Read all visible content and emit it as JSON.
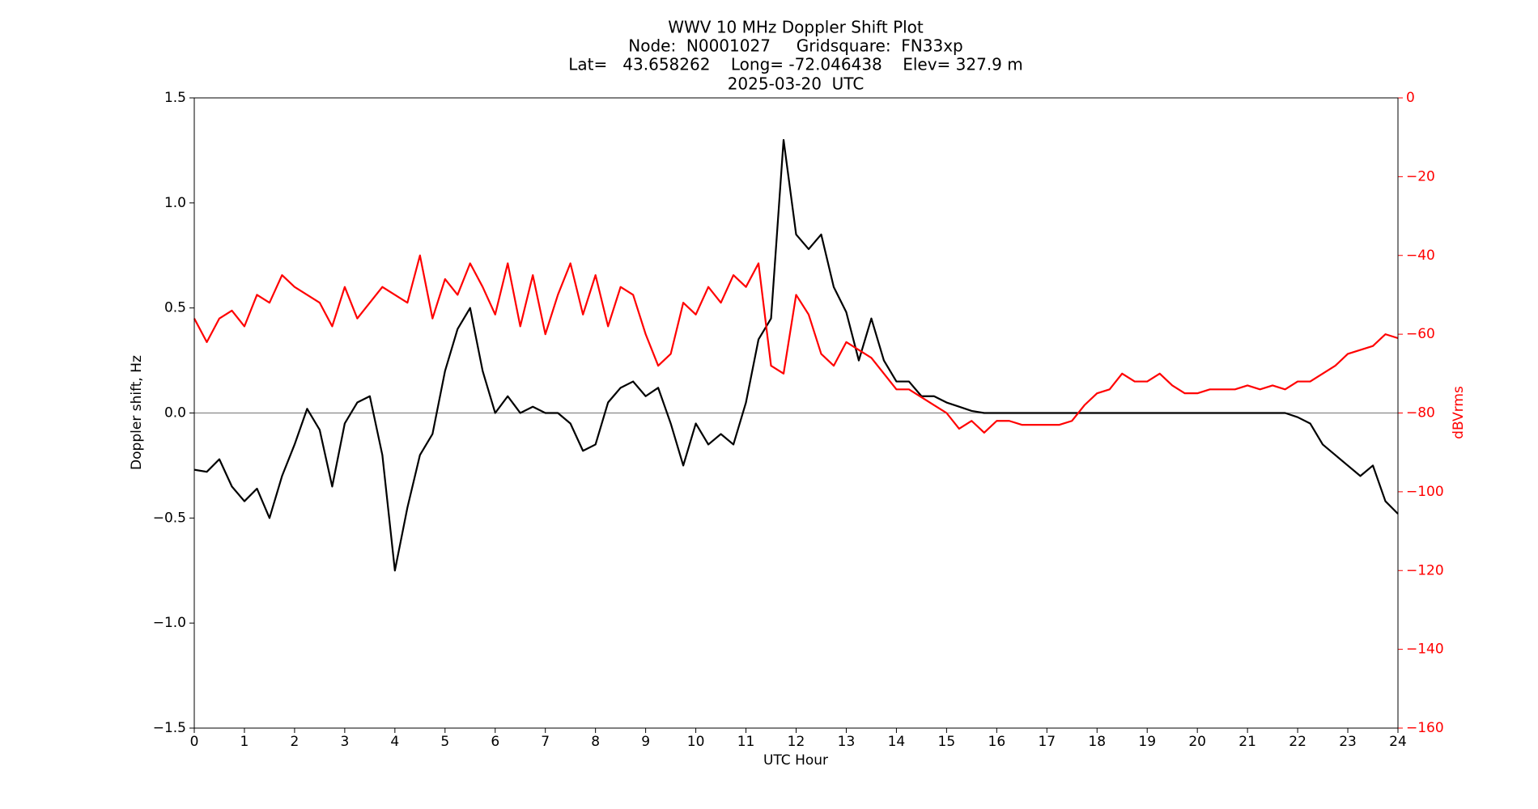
{
  "chart_data": {
    "type": "line",
    "title": [
      "WWV 10 MHz Doppler Shift Plot",
      "Node:  N0001027     Gridsquare:  FN33xp",
      "Lat=   43.658262    Long= -72.046438    Elev= 327.9 m",
      "2025-03-20  UTC"
    ],
    "x_label": "UTC Hour",
    "y_label": "Doppler shift, Hz",
    "y2_label": "dBVrms",
    "x": [
      0,
      0.25,
      0.5,
      0.75,
      1,
      1.25,
      1.5,
      1.75,
      2,
      2.25,
      2.5,
      2.75,
      3,
      3.25,
      3.5,
      3.75,
      4,
      4.25,
      4.5,
      4.75,
      5,
      5.25,
      5.5,
      5.75,
      6,
      6.25,
      6.5,
      6.75,
      7,
      7.25,
      7.5,
      7.75,
      8,
      8.25,
      8.5,
      8.75,
      9,
      9.25,
      9.5,
      9.75,
      10,
      10.25,
      10.5,
      10.75,
      11,
      11.25,
      11.5,
      11.75,
      12,
      12.25,
      12.5,
      12.75,
      13,
      13.25,
      13.5,
      13.75,
      14,
      14.25,
      14.5,
      14.75,
      15,
      15.25,
      15.5,
      15.75,
      16,
      16.25,
      16.5,
      16.75,
      17,
      17.25,
      17.5,
      17.75,
      18,
      18.25,
      18.5,
      18.75,
      19,
      19.25,
      19.5,
      19.75,
      20,
      20.25,
      20.5,
      20.75,
      21,
      21.25,
      21.5,
      21.75,
      22,
      22.25,
      22.5,
      22.75,
      23,
      23.25,
      23.5,
      23.75,
      24
    ],
    "series": [
      {
        "name": "Doppler shift",
        "color": "#000000",
        "values": [
          -0.27,
          -0.28,
          -0.22,
          -0.35,
          -0.42,
          -0.36,
          -0.5,
          -0.3,
          -0.15,
          0.02,
          -0.08,
          -0.35,
          -0.05,
          0.05,
          0.08,
          -0.2,
          -0.75,
          -0.45,
          -0.2,
          -0.1,
          0.2,
          0.4,
          0.5,
          0.2,
          0.0,
          0.08,
          0.0,
          0.03,
          0.0,
          0.0,
          -0.05,
          -0.18,
          -0.15,
          0.05,
          0.12,
          0.15,
          0.08,
          0.12,
          -0.05,
          -0.25,
          -0.05,
          -0.15,
          -0.1,
          -0.15,
          0.05,
          0.35,
          0.45,
          1.3,
          0.85,
          0.78,
          0.85,
          0.6,
          0.48,
          0.25,
          0.45,
          0.25,
          0.15,
          0.15,
          0.08,
          0.08,
          0.05,
          0.03,
          0.01,
          0,
          0,
          0,
          0,
          0,
          0,
          0,
          0,
          0,
          0,
          0,
          0,
          0,
          0,
          0,
          0,
          0,
          0,
          0,
          0,
          0,
          0,
          0,
          0,
          0,
          -0.02,
          -0.05,
          -0.15,
          -0.2,
          -0.25,
          -0.3,
          -0.25,
          -0.42,
          -0.48
        ]
      },
      {
        "name": "dBVrms",
        "color": "#ff0000",
        "axis": "y2",
        "values": [
          -56,
          -62,
          -56,
          -54,
          -58,
          -50,
          -52,
          -45,
          -48,
          -50,
          -52,
          -58,
          -48,
          -56,
          -52,
          -48,
          -50,
          -52,
          -40,
          -56,
          -46,
          -50,
          -42,
          -48,
          -55,
          -42,
          -58,
          -45,
          -60,
          -50,
          -42,
          -55,
          -45,
          -58,
          -48,
          -50,
          -60,
          -68,
          -65,
          -52,
          -55,
          -48,
          -52,
          -45,
          -48,
          -42,
          -68,
          -70,
          -50,
          -55,
          -65,
          -68,
          -62,
          -64,
          -66,
          -70,
          -74,
          -74,
          -76,
          -78,
          -80,
          -84,
          -82,
          -85,
          -82,
          -82,
          -83,
          -83,
          -83,
          -83,
          -82,
          -78,
          -75,
          -74,
          -70,
          -72,
          -72,
          -70,
          -73,
          -75,
          -75,
          -74,
          -74,
          -74,
          -73,
          -74,
          -73,
          -74,
          -72,
          -72,
          -70,
          -68,
          -65,
          -64,
          -63,
          -60,
          -61
        ]
      }
    ],
    "xlim": [
      0,
      24
    ],
    "xticks": [
      0,
      1,
      2,
      3,
      4,
      5,
      6,
      7,
      8,
      9,
      10,
      11,
      12,
      13,
      14,
      15,
      16,
      17,
      18,
      19,
      20,
      21,
      22,
      23,
      24
    ],
    "ylim": [
      -1.5,
      1.5
    ],
    "yticks": [
      {
        "value": -1.5,
        "label": "−1.5"
      },
      {
        "value": -1.0,
        "label": "−1.0"
      },
      {
        "value": -0.5,
        "label": "−0.5"
      },
      {
        "value": 0,
        "label": "0.0"
      },
      {
        "value": 0.5,
        "label": "0.5"
      },
      {
        "value": 1.0,
        "label": "1.0"
      },
      {
        "value": 1.5,
        "label": "1.5"
      }
    ],
    "y2lim": [
      -160,
      0
    ],
    "y2ticks": [
      {
        "value": -160,
        "label": "−160"
      },
      {
        "value": -140,
        "label": "−140"
      },
      {
        "value": -120,
        "label": "−120"
      },
      {
        "value": -100,
        "label": "−100"
      },
      {
        "value": -80,
        "label": "−80"
      },
      {
        "value": -60,
        "label": "−60"
      },
      {
        "value": -40,
        "label": "−40"
      },
      {
        "value": -20,
        "label": "−20"
      },
      0
    ],
    "y2_color": "#ff0000",
    "zero_line": true
  }
}
